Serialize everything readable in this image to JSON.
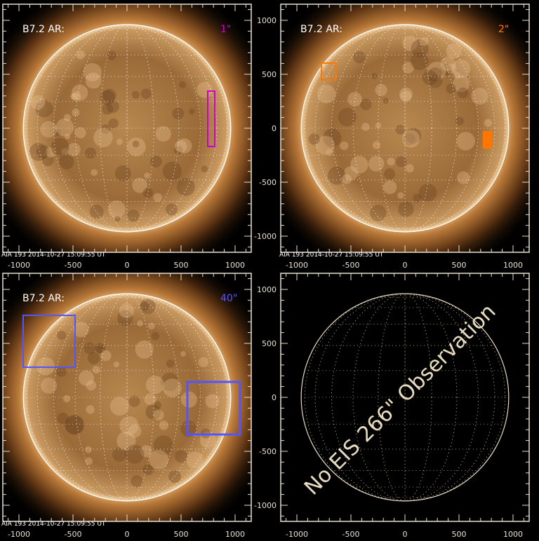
{
  "panels": [
    {
      "label": "B7.2 AR:",
      "tag": "1\"",
      "tag_color": "#cc00cc",
      "footer": "AIA 193   2014-10-27 15:09:55 UT"
    },
    {
      "label": "B7.2 AR:",
      "tag": "2\"",
      "tag_color": "#ff7700",
      "footer": "AIA 193   2014-10-27 15:09:55 UT"
    },
    {
      "label": "B7.2 AR:",
      "tag": "40\"",
      "tag_color": "#5555ff",
      "footer": "AIA 193   2014-10-27 15:09:55 UT"
    },
    {
      "message": "No EIS 266\" Observation",
      "message_color": "#e8dcc0"
    }
  ],
  "axes": {
    "x_ticks": [
      "-1000",
      "-500",
      "0",
      "500",
      "1000"
    ],
    "y_ticks": [
      "1000",
      "500",
      "0",
      "-500",
      "-1000"
    ]
  }
}
